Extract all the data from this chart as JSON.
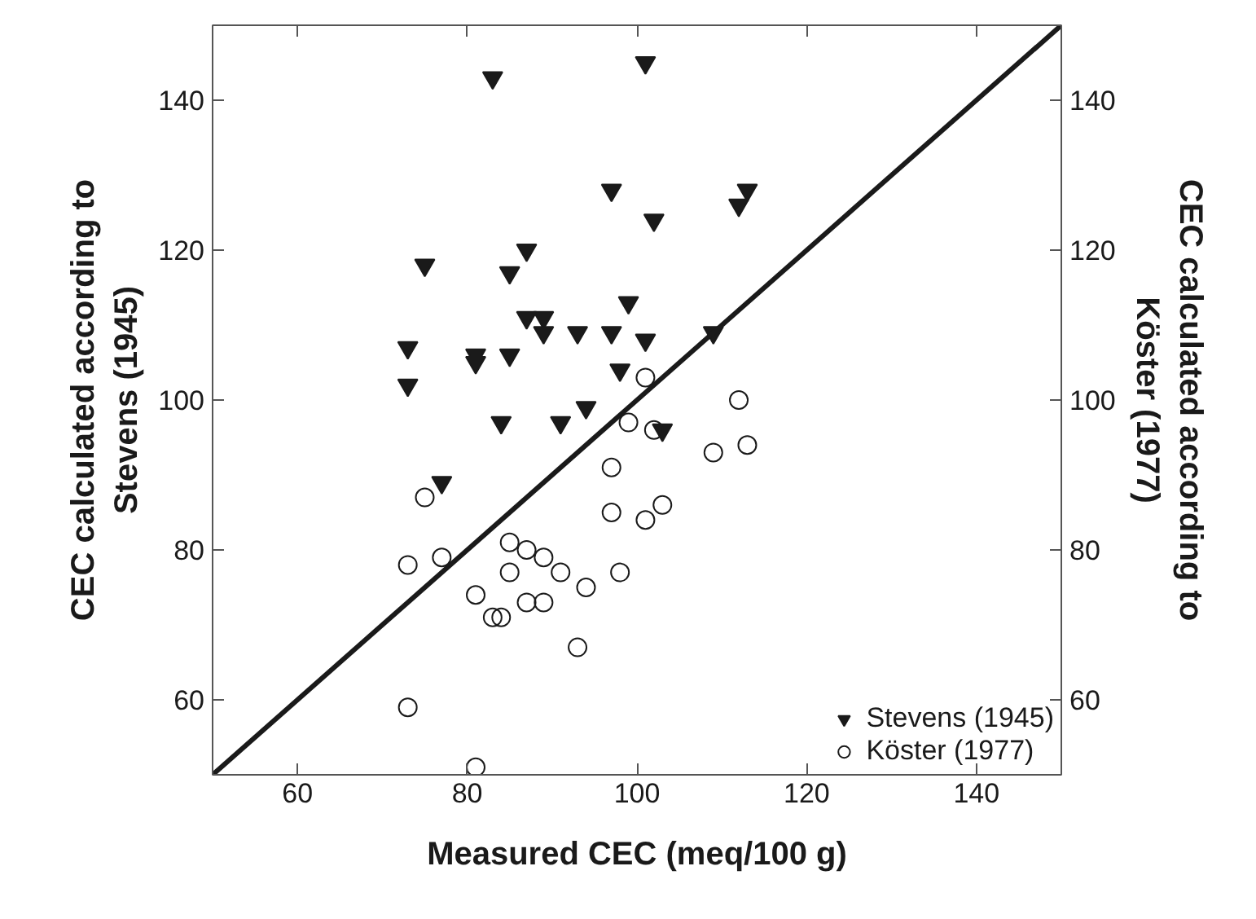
{
  "chart_data": {
    "type": "scatter",
    "xlabel": "Measured CEC (meq/100 g)",
    "ylabel": "CEC calculated according to\nStevens (1945)",
    "y2label": "CEC calculated according to\nKöster (1977)",
    "xlim": [
      50,
      150
    ],
    "ylim": [
      50,
      150
    ],
    "y2lim": [
      50,
      150
    ],
    "xticks": [
      60,
      80,
      100,
      120,
      140
    ],
    "yticks": [
      60,
      80,
      100,
      120,
      140
    ],
    "y2ticks": [
      60,
      80,
      100,
      120,
      140
    ],
    "grid": false,
    "legend": "bottom right",
    "series": [
      {
        "name": "Stevens (1945)",
        "marker": "triangle",
        "color": "#1a1a1a",
        "x": [
          83,
          101,
          97,
          113,
          112,
          102,
          87,
          75,
          85,
          99,
          87,
          89,
          89,
          93,
          97,
          109,
          73,
          101,
          81,
          81,
          85,
          98,
          73,
          84,
          91,
          94,
          103,
          77
        ],
        "values": [
          143,
          145,
          128,
          128,
          126,
          124,
          120,
          118,
          117,
          113,
          111,
          111,
          109,
          109,
          109,
          109,
          107,
          108,
          106,
          105,
          106,
          104,
          102,
          97,
          97,
          99,
          96,
          89
        ]
      },
      {
        "name": "Köster (1977)",
        "marker": "circle",
        "color": "#1a1a1a",
        "x": [
          101,
          112,
          99,
          102,
          113,
          109,
          97,
          75,
          97,
          103,
          101,
          85,
          87,
          89,
          77,
          73,
          85,
          91,
          98,
          94,
          81,
          87,
          89,
          83,
          84,
          93,
          73,
          81
        ],
        "values": [
          103,
          100,
          97,
          96,
          94,
          93,
          91,
          87,
          85,
          86,
          84,
          81,
          80,
          79,
          79,
          78,
          77,
          77,
          77,
          75,
          74,
          73,
          73,
          71,
          71,
          67,
          59,
          51
        ]
      },
      {
        "type": "line",
        "color": "#1a1a1a",
        "x": [
          50,
          150
        ],
        "values": [
          50,
          150
        ]
      }
    ]
  }
}
